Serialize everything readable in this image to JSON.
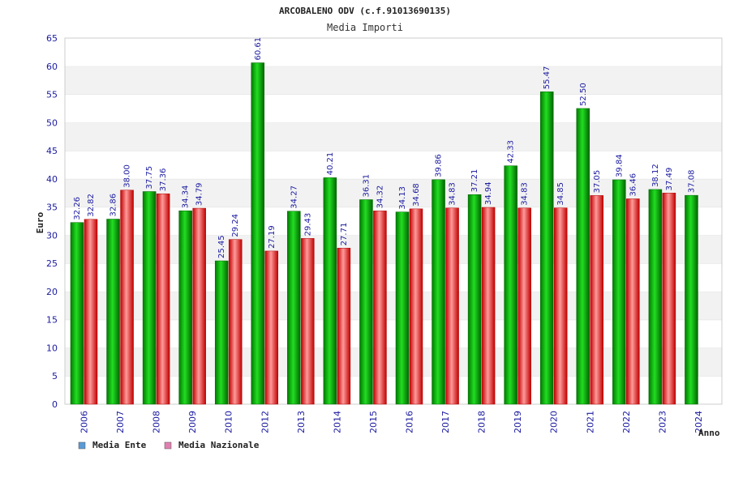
{
  "chart_data": {
    "type": "bar",
    "title": "ARCOBALENO ODV (c.f.91013690135)",
    "subtitle": "Media Importi",
    "ylabel": "Euro",
    "xlabel": "Anno",
    "ylim": [
      0,
      65
    ],
    "yticks": [
      0,
      5,
      10,
      15,
      20,
      25,
      30,
      35,
      40,
      45,
      50,
      55,
      60,
      65
    ],
    "categories": [
      "2006",
      "2007",
      "2008",
      "2009",
      "2010",
      "2012",
      "2013",
      "2014",
      "2015",
      "2016",
      "2017",
      "2018",
      "2019",
      "2020",
      "2021",
      "2022",
      "2023",
      "2024"
    ],
    "series": [
      {
        "name": "Media Ente",
        "color": "#00b000",
        "values": [
          32.26,
          32.86,
          37.75,
          34.34,
          25.45,
          60.61,
          34.27,
          40.21,
          36.31,
          34.13,
          39.86,
          37.21,
          42.33,
          55.47,
          52.5,
          39.84,
          38.12,
          37.08
        ],
        "labels": [
          "32.26",
          "32.86",
          "37.75",
          "34.34",
          "25.45",
          "60.61",
          "34.27",
          "40.21",
          "36.31",
          "34.13",
          "39.86",
          "37.21",
          "42.33",
          "55.47",
          "52.50",
          "39.84",
          "38.12",
          "37.08"
        ]
      },
      {
        "name": "Media Nazionale",
        "color": "#e00000",
        "values": [
          32.82,
          38.0,
          37.36,
          34.79,
          29.24,
          27.19,
          29.43,
          27.71,
          34.32,
          34.68,
          34.83,
          34.94,
          34.83,
          34.85,
          37.05,
          36.46,
          37.49,
          null
        ],
        "labels": [
          "32.82",
          "38.00",
          "37.36",
          "34.79",
          "29.24",
          "27.19",
          "29.43",
          "27.71",
          "34.32",
          "34.68",
          "34.83",
          "34.94",
          "34.83",
          "34.85",
          "37.05",
          "36.46",
          "37.49",
          null
        ]
      }
    ],
    "grid": true,
    "legend": "bottom-left",
    "legend_swatch_colors": [
      "#5b9bd5",
      "#e080b0"
    ]
  }
}
